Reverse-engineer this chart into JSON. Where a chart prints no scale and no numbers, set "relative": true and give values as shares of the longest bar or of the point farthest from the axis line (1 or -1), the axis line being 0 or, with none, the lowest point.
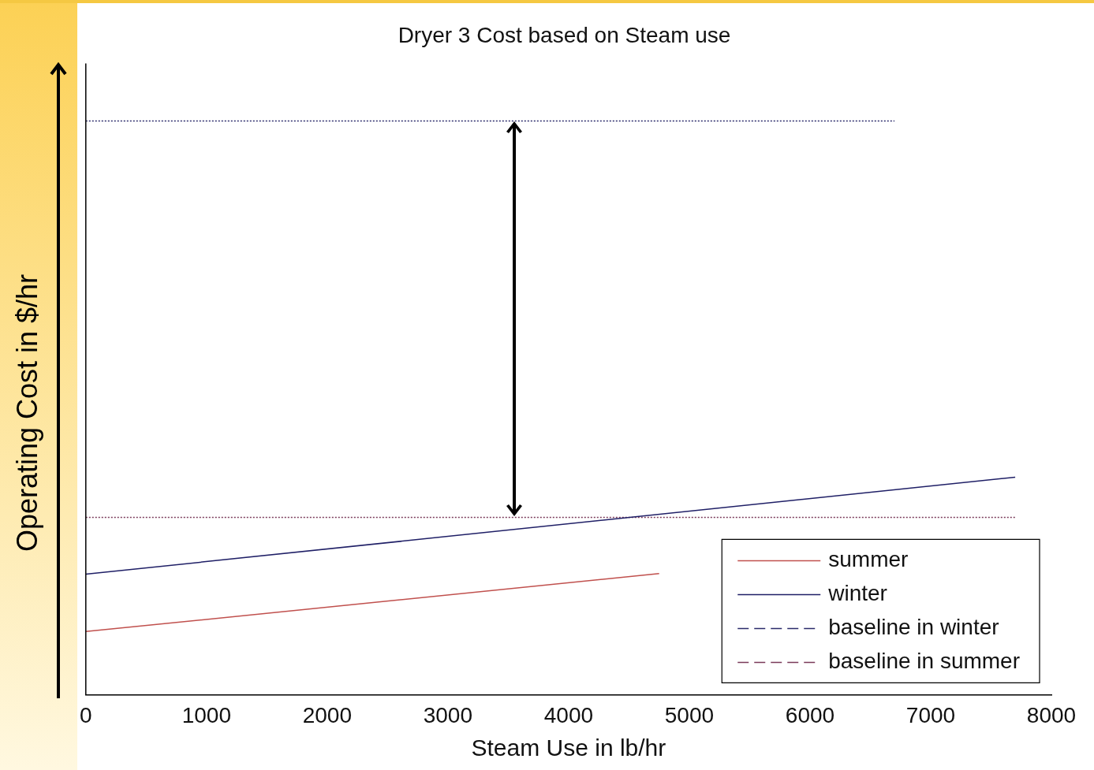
{
  "chart_data": {
    "type": "line",
    "title": "Dryer 3 Cost based on Steam use",
    "xlabel": "Steam Use in lb/hr",
    "ylabel": "Operating Cost  in $/hr",
    "relative": true,
    "xlim": [
      0,
      8000
    ],
    "xticks": [
      0,
      1000,
      2000,
      3000,
      4000,
      5000,
      6000,
      7000,
      8000
    ],
    "legend": "bottom right",
    "grid": false,
    "series": [
      {
        "name": "summer",
        "color": "#c0504d",
        "x": [
          0,
          4750
        ],
        "values": [
          0.11,
          0.211
        ],
        "line_style": "solid"
      },
      {
        "name": "winter",
        "color": "#1f1f66",
        "x": [
          0,
          7700
        ],
        "values": [
          0.21,
          0.379
        ],
        "line_style": "solid"
      },
      {
        "name": "baseline in winter",
        "color": "#2a2a6a",
        "x": [
          0,
          6700
        ],
        "values": [
          1,
          1
        ],
        "line_style": "dotted"
      },
      {
        "name": "baseline in summer",
        "color": "#7a3a5a",
        "x": [
          0,
          7700
        ],
        "values": [
          0.309,
          0.309
        ],
        "line_style": "dotted"
      }
    ]
  }
}
